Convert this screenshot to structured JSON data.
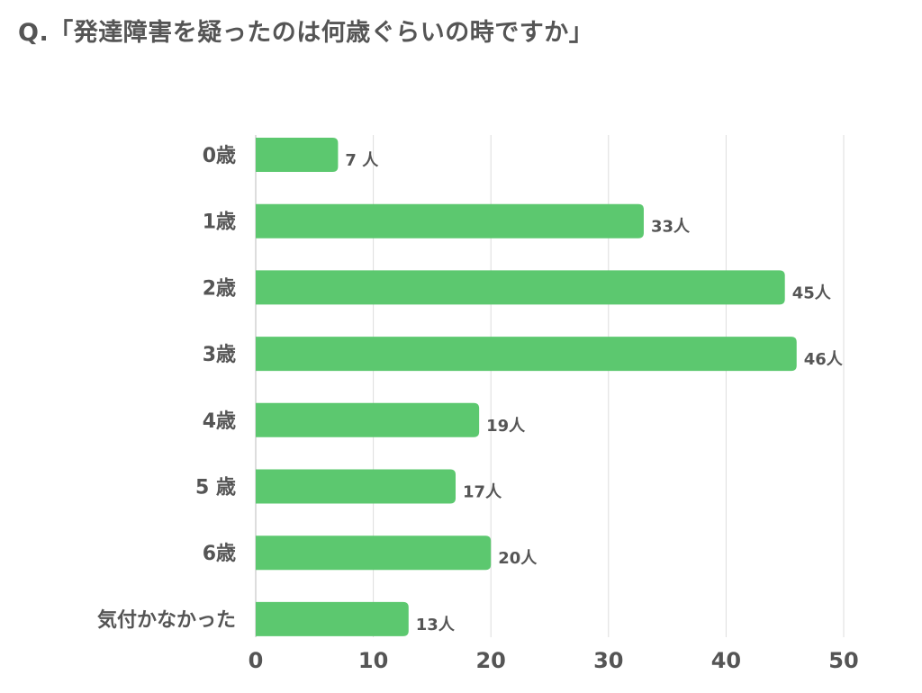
{
  "title": "Q.「発達障害を疑ったのは何歳ぐらいの時ですか」",
  "chart_data": {
    "type": "bar",
    "orientation": "horizontal",
    "categories": [
      "0歳",
      "1歳",
      "2歳",
      "3歳",
      "4歳",
      "5 歳",
      "6歳",
      "気付かなかった"
    ],
    "values": [
      7,
      33,
      45,
      46,
      19,
      17,
      20,
      13
    ],
    "data_labels": [
      "7 人",
      "33人",
      "45人",
      "46人",
      "19人",
      "17人",
      "20人",
      "13人"
    ],
    "x_ticks": [
      0,
      10,
      20,
      30,
      40,
      50
    ],
    "xlim": [
      0,
      50
    ],
    "grid": true,
    "bar_color": "#5cc86f",
    "grid_color": "#dddddd",
    "text_color": "#555555"
  }
}
